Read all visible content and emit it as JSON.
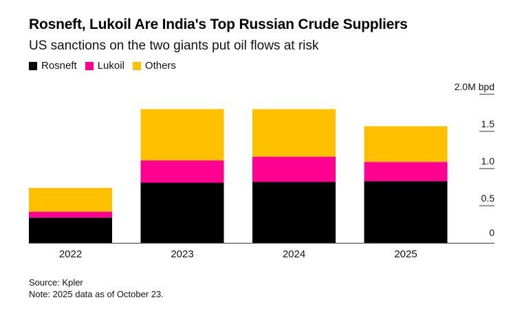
{
  "title": "Rosneft, Lukoil Are India's Top Russian Crude Suppliers",
  "subtitle": "US sanctions on the two giants put oil flows at risk",
  "legend": [
    {
      "label": "Rosneft",
      "color": "#000000"
    },
    {
      "label": "Lukoil",
      "color": "#ff0090"
    },
    {
      "label": "Others",
      "color": "#ffc000"
    }
  ],
  "source": "Source: Kpler",
  "note": "Note: 2025 data as of October 23.",
  "chart_data": {
    "type": "bar",
    "stacked": true,
    "title": "Rosneft, Lukoil Are India's Top Russian Crude Suppliers",
    "subtitle": "US sanctions on the two giants put oil flows at risk",
    "xlabel": "",
    "ylabel": "M bpd",
    "categories": [
      "2022",
      "2023",
      "2024",
      "2025"
    ],
    "series": [
      {
        "name": "Rosneft",
        "color": "#000000",
        "values": [
          0.34,
          0.81,
          0.82,
          0.83
        ]
      },
      {
        "name": "Lukoil",
        "color": "#ff0090",
        "values": [
          0.08,
          0.3,
          0.34,
          0.26
        ]
      },
      {
        "name": "Others",
        "color": "#ffc000",
        "values": [
          0.32,
          0.69,
          0.64,
          0.48
        ]
      }
    ],
    "ylim": [
      0,
      2.0
    ],
    "yticks": [
      0,
      0.5,
      1.0,
      1.5,
      2.0
    ],
    "ytick_labels": [
      "0",
      "0.5",
      "1.0",
      "1.5",
      "2.0M bpd"
    ],
    "y_axis_side": "right",
    "grid": false,
    "legend_position": "top-left"
  }
}
